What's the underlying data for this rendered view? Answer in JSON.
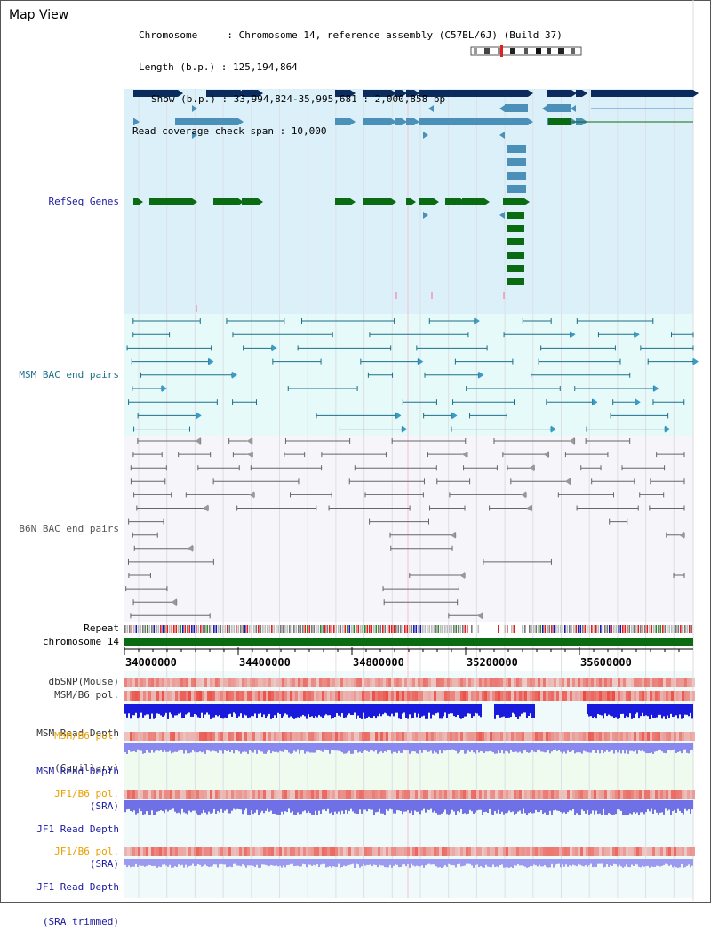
{
  "page_title": "Map View",
  "chromosome_info": {
    "line1": "Chromosome     : Chromosome 14, reference assembly (C57BL/6J) (Build 37)",
    "line2": "Length (b.p.) : 125,194,864",
    "line3": "Show (b.p.) : 33,994,824-35,995,681 : 2,000,858 bp",
    "line4": "Read coverage check span : 10,000"
  },
  "tracks": {
    "refseq": "RefSeq Genes",
    "msm_bac": "MSM BAC end pairs",
    "b6n_bac": "B6N BAC end pairs",
    "repeat": "Repeat",
    "chromosome": "chromosome 14",
    "dbsnp": "dbSNP(Mouse)",
    "msm_b6_pol": "MSM/B6 pol.",
    "msm_read_depth_cap_1": "MSM Read Depth",
    "msm_read_depth_cap_2": "(Capillary)",
    "msm_b6_pol_sra": "MSM/B6 pol.",
    "msm_read_depth_sra_1": "MSM Read Depth",
    "msm_read_depth_sra_2": "(SRA)",
    "jf1_b6_pol": "JF1/B6 pol.",
    "jf1_read_depth_1": "JF1 Read Depth",
    "jf1_read_depth_2": "(SRA)",
    "jf1_b6_pol_trim": "JF1/B6 pol.",
    "jf1_read_depth_trim_1": "JF1 Read Depth",
    "jf1_read_depth_trim_2": "(SRA trimmed)"
  },
  "axis_ticks": [
    "34000000",
    "34400000",
    "34800000",
    "35200000",
    "35600000"
  ],
  "colors": {
    "refseq_bg": "#dcf0fa",
    "msm_bg": "#e6fafa",
    "b6n_bg": "#f5f5fa",
    "gene_dark": "#0a2b5c",
    "gene_mid": "#4a90b8",
    "gene_green": "#0a6b12",
    "msm_line": "#1c6f8a",
    "b6n_line": "#666666",
    "depth_blue": "#1a1adc",
    "depth_light": "#8888ee",
    "pol_red": "#e03030",
    "label_blue": "#1a1aa0",
    "label_orange": "#e8a000"
  }
}
